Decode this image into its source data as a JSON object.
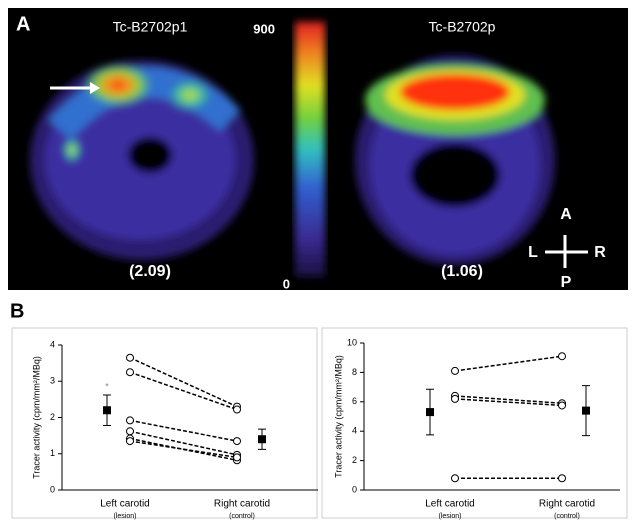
{
  "panel_a": {
    "label": "A",
    "images": [
      {
        "title": "Tc-B2702p1",
        "ratio": "(2.09)"
      },
      {
        "title": "Tc-B2702p",
        "ratio": "(1.06)"
      }
    ],
    "colorbar": {
      "max": 900,
      "min": 0
    },
    "orientation": {
      "top": "A",
      "left": "L",
      "right": "R",
      "bottom": "P"
    }
  },
  "panel_b_label": "B",
  "chart_data": [
    {
      "type": "line",
      "ylabel": "Tracer activity (cpm/mm²/MBq)",
      "categories": [
        "Left carotid",
        "Right carotid"
      ],
      "category_notes": [
        "(lesion)",
        "(control)"
      ],
      "ylim": [
        0,
        4
      ],
      "yticks": [
        0,
        1,
        2,
        3,
        4
      ],
      "color": "#000000",
      "series": [
        {
          "values": [
            3.65,
            2.3
          ]
        },
        {
          "values": [
            3.25,
            2.22
          ]
        },
        {
          "values": [
            1.92,
            1.35
          ]
        },
        {
          "values": [
            1.62,
            0.97
          ]
        },
        {
          "values": [
            1.42,
            0.82
          ]
        },
        {
          "values": [
            1.35,
            0.9
          ]
        }
      ],
      "mean": {
        "values": [
          2.2,
          1.4
        ],
        "errors": [
          0.42,
          0.28
        ]
      },
      "annotation": "*"
    },
    {
      "type": "line",
      "ylabel": "Tracer activity (cpm/mm²/MBq)",
      "categories": [
        "Left carotid",
        "Right carotid"
      ],
      "category_notes": [
        "(lesion)",
        "(control)"
      ],
      "ylim": [
        0,
        10
      ],
      "yticks": [
        0,
        2,
        4,
        6,
        8,
        10
      ],
      "color": "#000000",
      "series": [
        {
          "values": [
            8.1,
            9.1
          ]
        },
        {
          "values": [
            6.4,
            5.9
          ]
        },
        {
          "values": [
            6.2,
            5.75
          ]
        },
        {
          "values": [
            0.8,
            0.8
          ]
        }
      ],
      "mean": {
        "values": [
          5.3,
          5.4
        ],
        "errors": [
          1.55,
          1.7
        ]
      }
    }
  ]
}
